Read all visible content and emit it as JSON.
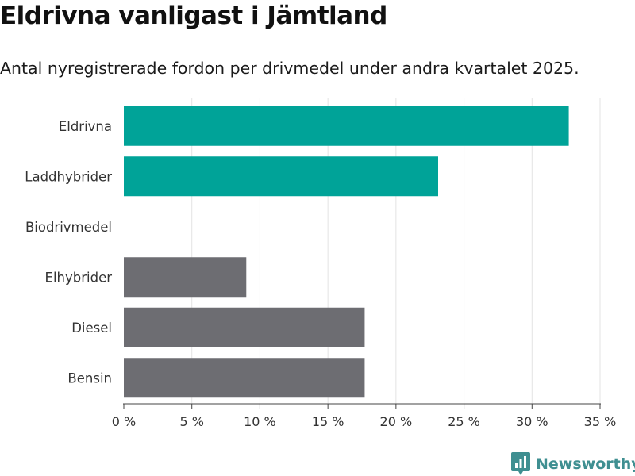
{
  "header": {
    "title": "Eldrivna vanligast i Jämtland",
    "subtitle": "Antal nyregistrerade fordon per drivmedel under andra kvartalet 2025."
  },
  "chart_data": {
    "type": "bar",
    "orientation": "horizontal",
    "categories": [
      "Eldrivna",
      "Laddhybrider",
      "Biodrivmedel",
      "Elhybrider",
      "Diesel",
      "Bensin"
    ],
    "values": [
      32.7,
      23.1,
      0,
      9.0,
      17.7,
      17.7
    ],
    "colors": [
      "#00a398",
      "#00a398",
      "#6d6d72",
      "#6d6d72",
      "#6d6d72",
      "#6d6d72"
    ],
    "xlim": [
      0,
      35
    ],
    "x_ticks": [
      0,
      5,
      10,
      15,
      20,
      25,
      30,
      35
    ],
    "x_tick_labels": [
      "0 %",
      "5 %",
      "10 %",
      "15 %",
      "20 %",
      "25 %",
      "30 %",
      "35 %"
    ],
    "grid": true
  },
  "brand": {
    "name": "Newsworthy",
    "icon": "newsworthy-logo-icon",
    "color": "#3f8f91"
  }
}
